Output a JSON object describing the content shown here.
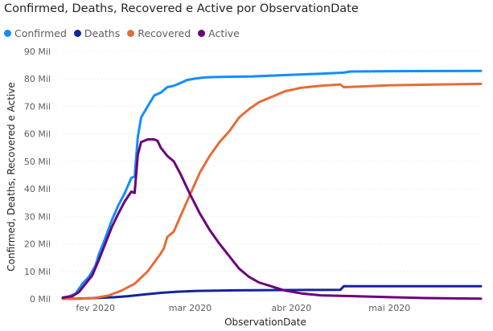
{
  "chart_data": {
    "type": "line",
    "title": "Confirmed, Deaths, Recovered e Active por ObservationDate",
    "xlabel": "ObservationDate",
    "ylabel": "Confirmed, Deaths, Recovered e Active",
    "ylim": [
      0,
      90000
    ],
    "y_tick_labels": [
      "0 Mil",
      "10 Mil",
      "20 Mil",
      "30 Mil",
      "40 Mil",
      "50 Mil",
      "60 Mil",
      "70 Mil",
      "80 Mil",
      "90 Mil"
    ],
    "x_tick_labels": [
      "fev 2020",
      "mar 2020",
      "abr 2020",
      "mai 2020"
    ],
    "x_range": [
      "2020-01-22",
      "2020-05-29"
    ],
    "grid": true,
    "legend_position": "top-left",
    "series": [
      {
        "name": "Confirmed",
        "color": "#118DFF",
        "points": [
          [
            "2020-01-22",
            500
          ],
          [
            "2020-01-24",
            900
          ],
          [
            "2020-01-26",
            2000
          ],
          [
            "2020-01-28",
            5500
          ],
          [
            "2020-01-30",
            8000
          ],
          [
            "2020-02-01",
            12000
          ],
          [
            "2020-02-02",
            16000
          ],
          [
            "2020-02-04",
            22000
          ],
          [
            "2020-02-06",
            28500
          ],
          [
            "2020-02-08",
            34000
          ],
          [
            "2020-02-10",
            38500
          ],
          [
            "2020-02-12",
            44000
          ],
          [
            "2020-02-13",
            44500
          ],
          [
            "2020-02-14",
            59000
          ],
          [
            "2020-02-15",
            66000
          ],
          [
            "2020-02-17",
            70000
          ],
          [
            "2020-02-19",
            74000
          ],
          [
            "2020-02-21",
            75000
          ],
          [
            "2020-02-23",
            77000
          ],
          [
            "2020-02-25",
            77500
          ],
          [
            "2020-02-27",
            78500
          ],
          [
            "2020-02-29",
            79600
          ],
          [
            "2020-03-03",
            80200
          ],
          [
            "2020-03-06",
            80600
          ],
          [
            "2020-03-10",
            80750
          ],
          [
            "2020-03-20",
            80900
          ],
          [
            "2020-04-01",
            81500
          ],
          [
            "2020-04-10",
            81900
          ],
          [
            "2020-04-17",
            82300
          ],
          [
            "2020-04-19",
            82700
          ],
          [
            "2020-05-01",
            82800
          ],
          [
            "2020-05-29",
            82900
          ]
        ]
      },
      {
        "name": "Deaths",
        "color": "#12239E",
        "points": [
          [
            "2020-01-22",
            50
          ],
          [
            "2020-01-26",
            80
          ],
          [
            "2020-01-30",
            200
          ],
          [
            "2020-02-03",
            400
          ],
          [
            "2020-02-07",
            600
          ],
          [
            "2020-02-11",
            1000
          ],
          [
            "2020-02-16",
            1600
          ],
          [
            "2020-02-21",
            2200
          ],
          [
            "2020-02-26",
            2600
          ],
          [
            "2020-03-03",
            2900
          ],
          [
            "2020-03-15",
            3100
          ],
          [
            "2020-04-01",
            3200
          ],
          [
            "2020-04-16",
            3300
          ],
          [
            "2020-04-17",
            4600
          ],
          [
            "2020-05-29",
            4600
          ]
        ]
      },
      {
        "name": "Recovered",
        "color": "#E66C37",
        "points": [
          [
            "2020-01-22",
            0
          ],
          [
            "2020-01-28",
            100
          ],
          [
            "2020-02-01",
            400
          ],
          [
            "2020-02-05",
            1200
          ],
          [
            "2020-02-09",
            3000
          ],
          [
            "2020-02-13",
            5500
          ],
          [
            "2020-02-17",
            10000
          ],
          [
            "2020-02-21",
            16500
          ],
          [
            "2020-02-22",
            18500
          ],
          [
            "2020-02-23",
            22500
          ],
          [
            "2020-02-25",
            24500
          ],
          [
            "2020-02-27",
            30000
          ],
          [
            "2020-03-01",
            38000
          ],
          [
            "2020-03-04",
            46000
          ],
          [
            "2020-03-07",
            52000
          ],
          [
            "2020-03-10",
            57000
          ],
          [
            "2020-03-13",
            61000
          ],
          [
            "2020-03-16",
            66000
          ],
          [
            "2020-03-19",
            69000
          ],
          [
            "2020-03-22",
            71500
          ],
          [
            "2020-03-26",
            73500
          ],
          [
            "2020-03-30",
            75500
          ],
          [
            "2020-04-04",
            76800
          ],
          [
            "2020-04-10",
            77500
          ],
          [
            "2020-04-16",
            78000
          ],
          [
            "2020-04-17",
            77000
          ],
          [
            "2020-04-22",
            77200
          ],
          [
            "2020-05-01",
            77700
          ],
          [
            "2020-05-29",
            78200
          ]
        ]
      },
      {
        "name": "Active",
        "color": "#6B007B",
        "points": [
          [
            "2020-01-22",
            450
          ],
          [
            "2020-01-25",
            1000
          ],
          [
            "2020-01-27",
            2500
          ],
          [
            "2020-01-29",
            5500
          ],
          [
            "2020-01-31",
            8500
          ],
          [
            "2020-02-02",
            14000
          ],
          [
            "2020-02-04",
            20000
          ],
          [
            "2020-02-06",
            26000
          ],
          [
            "2020-02-08",
            31000
          ],
          [
            "2020-02-10",
            35500
          ],
          [
            "2020-02-12",
            39000
          ],
          [
            "2020-02-13",
            38500
          ],
          [
            "2020-02-14",
            52500
          ],
          [
            "2020-02-15",
            57000
          ],
          [
            "2020-02-17",
            58000
          ],
          [
            "2020-02-19",
            58000
          ],
          [
            "2020-02-20",
            57500
          ],
          [
            "2020-02-21",
            55000
          ],
          [
            "2020-02-23",
            52000
          ],
          [
            "2020-02-25",
            50000
          ],
          [
            "2020-02-27",
            45500
          ],
          [
            "2020-03-01",
            38000
          ],
          [
            "2020-03-04",
            31000
          ],
          [
            "2020-03-07",
            25000
          ],
          [
            "2020-03-10",
            20000
          ],
          [
            "2020-03-13",
            15500
          ],
          [
            "2020-03-16",
            11000
          ],
          [
            "2020-03-19",
            8000
          ],
          [
            "2020-03-22",
            6000
          ],
          [
            "2020-03-26",
            4500
          ],
          [
            "2020-03-30",
            3000
          ],
          [
            "2020-04-04",
            2000
          ],
          [
            "2020-04-10",
            1300
          ],
          [
            "2020-04-20",
            1000
          ],
          [
            "2020-05-01",
            600
          ],
          [
            "2020-05-12",
            300
          ],
          [
            "2020-05-29",
            100
          ]
        ]
      }
    ]
  }
}
